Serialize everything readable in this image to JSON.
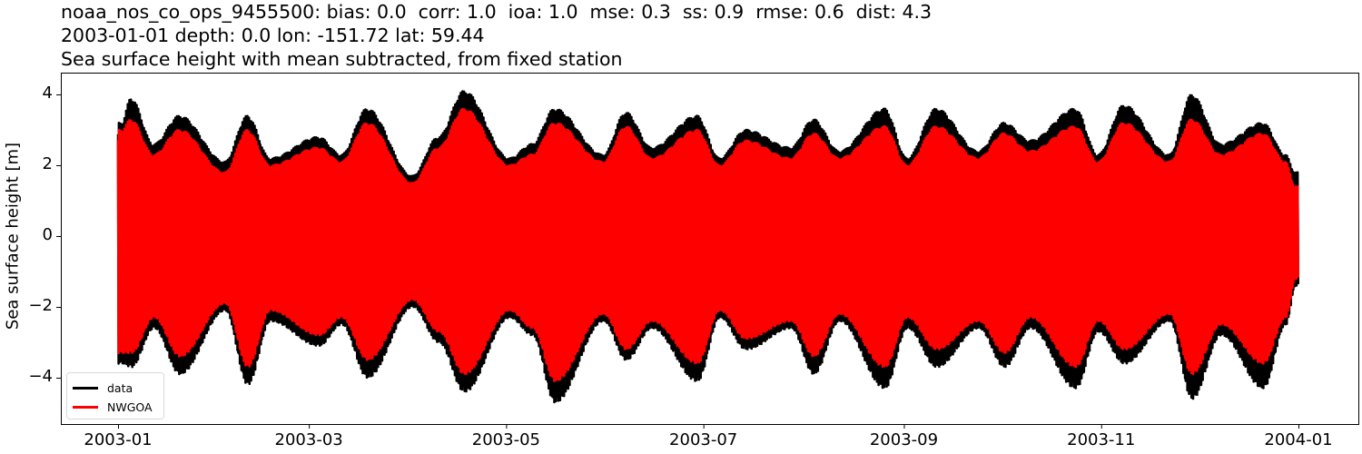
{
  "title": {
    "line1": "noaa_nos_co_ops_9455500: bias: 0.0  corr: 1.0  ioa: 1.0  mse: 0.3  ss: 0.9  rmse: 0.6  dist: 4.3",
    "line2": "2003-01-01 depth: 0.0 lon: -151.72 lat: 59.44",
    "line3": "Sea surface height with mean subtracted, from fixed station"
  },
  "axes": {
    "ylabel": "Sea surface height [m]",
    "yticks": [
      {
        "value": 4,
        "label": "4"
      },
      {
        "value": 2,
        "label": "2"
      },
      {
        "value": 0,
        "label": "0"
      },
      {
        "value": -2,
        "label": "−2"
      },
      {
        "value": -4,
        "label": "−4"
      }
    ],
    "xticks": [
      {
        "label": "2003-01",
        "month": 0
      },
      {
        "label": "2003-03",
        "month": 2
      },
      {
        "label": "2003-05",
        "month": 4
      },
      {
        "label": "2003-07",
        "month": 6
      },
      {
        "label": "2003-09",
        "month": 8
      },
      {
        "label": "2003-11",
        "month": 10
      },
      {
        "label": "2004-01",
        "month": 12
      }
    ]
  },
  "legend": {
    "items": [
      {
        "label": "data",
        "color": "#000000"
      },
      {
        "label": "NWGOA",
        "color": "#ff0000"
      }
    ]
  },
  "chart_data": {
    "type": "line",
    "title": "noaa_nos_co_ops_9455500: bias: 0.0  corr: 1.0  ioa: 1.0  mse: 0.3  ss: 0.9  rmse: 0.6  dist: 4.3 / 2003-01-01 depth: 0.0 lon: -151.72 lat: 59.44 / Sea surface height with mean subtracted, from fixed station",
    "xlabel": "",
    "ylabel": "Sea surface height [m]",
    "xlim": [
      "2002-12-22",
      "2004-01-10"
    ],
    "ylim": [
      -5.2,
      4.6
    ],
    "grid": false,
    "legend_position": "lower left",
    "stats": {
      "bias": 0.0,
      "corr": 1.0,
      "ioa": 1.0,
      "mse": 0.3,
      "ss": 0.9,
      "rmse": 0.6,
      "dist": 4.3
    },
    "station": {
      "id": "noaa_nos_co_ops_9455500",
      "date": "2003-01-01",
      "depth": 0.0,
      "lon": -151.72,
      "lat": 59.44
    },
    "description": "Hourly tidal signal with spring-neap envelope (~14.8 day cycle); observed data (black) has slightly larger amplitude than model NWGOA (red).",
    "envelope_x": [
      "2003-01-02",
      "2003-01-05",
      "2003-01-12",
      "2003-01-20",
      "2003-02-03",
      "2003-02-10",
      "2003-02-17",
      "2003-03-04",
      "2003-03-11",
      "2003-03-19",
      "2003-04-02",
      "2003-04-10",
      "2003-04-18",
      "2003-05-02",
      "2003-05-09",
      "2003-05-16",
      "2003-05-31",
      "2003-06-07",
      "2003-06-15",
      "2003-06-29",
      "2003-07-06",
      "2003-07-14",
      "2003-07-28",
      "2003-08-04",
      "2003-08-12",
      "2003-08-26",
      "2003-09-02",
      "2003-09-11",
      "2003-09-24",
      "2003-10-02",
      "2003-10-10",
      "2003-10-24",
      "2003-10-31",
      "2003-11-08",
      "2003-11-22",
      "2003-11-29",
      "2003-12-08",
      "2003-12-21",
      "2003-12-28",
      "2003-12-31"
    ],
    "series": [
      {
        "name": "data",
        "color": "#000000",
        "envelope_max": [
          3.2,
          3.9,
          2.6,
          3.4,
          2.1,
          3.4,
          2.2,
          2.8,
          2.3,
          3.6,
          1.7,
          2.8,
          4.1,
          2.2,
          2.6,
          3.6,
          2.3,
          3.5,
          2.5,
          3.4,
          2.2,
          3.0,
          2.5,
          3.3,
          2.4,
          3.6,
          2.2,
          3.6,
          2.4,
          3.2,
          2.7,
          3.6,
          2.3,
          3.7,
          2.3,
          4.0,
          2.6,
          3.2,
          2.3,
          1.8
        ],
        "envelope_min": [
          -3.6,
          -3.7,
          -2.6,
          -3.9,
          -2.1,
          -4.2,
          -2.4,
          -3.1,
          -2.5,
          -4.0,
          -2.0,
          -3.0,
          -4.4,
          -2.3,
          -2.8,
          -4.7,
          -2.4,
          -3.5,
          -2.6,
          -4.1,
          -2.3,
          -3.2,
          -2.6,
          -3.9,
          -2.4,
          -4.3,
          -2.6,
          -3.7,
          -2.6,
          -3.7,
          -2.6,
          -4.3,
          -2.7,
          -3.6,
          -2.4,
          -4.6,
          -2.8,
          -4.3,
          -2.5,
          -1.4
        ]
      },
      {
        "name": "NWGOA",
        "color": "#ff0000",
        "envelope_max": [
          3.0,
          3.3,
          2.3,
          3.0,
          1.8,
          3.0,
          2.0,
          2.5,
          2.1,
          3.2,
          1.5,
          2.5,
          3.6,
          2.0,
          2.3,
          3.2,
          2.1,
          3.1,
          2.2,
          3.0,
          2.0,
          2.7,
          2.2,
          2.9,
          2.2,
          3.1,
          2.0,
          3.1,
          2.2,
          2.9,
          2.4,
          3.1,
          2.1,
          3.2,
          2.1,
          3.3,
          2.3,
          2.9,
          2.1,
          1.4
        ],
        "envelope_min": [
          -3.3,
          -3.3,
          -2.3,
          -3.4,
          -1.9,
          -3.7,
          -2.1,
          -2.8,
          -2.3,
          -3.5,
          -1.8,
          -2.7,
          -3.9,
          -2.1,
          -2.6,
          -4.1,
          -2.2,
          -3.2,
          -2.4,
          -3.6,
          -2.1,
          -2.9,
          -2.4,
          -3.4,
          -2.2,
          -3.7,
          -2.3,
          -3.2,
          -2.4,
          -3.3,
          -2.3,
          -3.7,
          -2.4,
          -3.2,
          -2.2,
          -3.9,
          -2.5,
          -3.6,
          -2.3,
          -1.2
        ]
      }
    ]
  }
}
